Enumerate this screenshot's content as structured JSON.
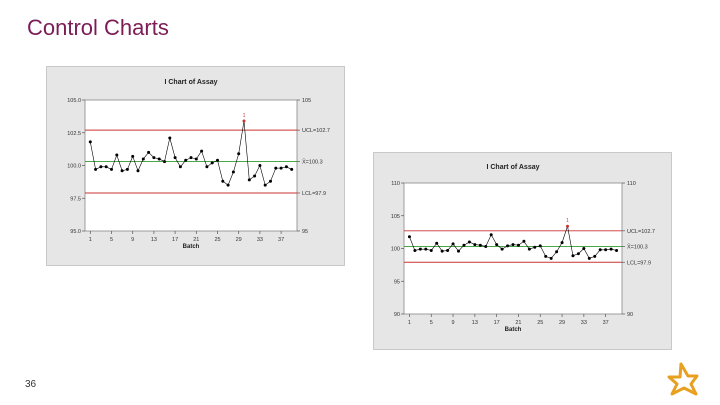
{
  "slide": {
    "title": "Control Charts",
    "page_number": "36",
    "logo_icon": "company-logo-icon",
    "accent_color": "#7b1c55",
    "logo_color": "#e8a020"
  },
  "chart_data": [
    {
      "type": "line",
      "title": "I Chart of Assay",
      "xlabel": "Batch",
      "ylabel": "",
      "x_ticks": [
        1,
        5,
        9,
        13,
        17,
        21,
        25,
        29,
        33,
        37
      ],
      "x_range": [
        0,
        40
      ],
      "y_ticks": [
        95.0,
        97.5,
        100.0,
        102.5,
        105.0
      ],
      "y_tick_labels": [
        "95.0",
        "97.5",
        "100.0",
        "102.5",
        "105.0"
      ],
      "ylim": [
        95,
        105
      ],
      "right_labels": [
        {
          "y": 105,
          "text": "105"
        },
        {
          "y": 102.7,
          "text": "UCL=102.7"
        },
        {
          "y": 100.3,
          "text": "X̄=100.3"
        },
        {
          "y": 97.9,
          "text": "LCL=97.9"
        },
        {
          "y": 95,
          "text": "95"
        }
      ],
      "ucl": 102.7,
      "center": 100.3,
      "lcl": 97.9,
      "out_of_control": [
        {
          "x": 30,
          "label": "1"
        }
      ],
      "series": [
        {
          "x": [
            1,
            2,
            3,
            4,
            5,
            6,
            7,
            8,
            9,
            10,
            11,
            12,
            13,
            14,
            15,
            16,
            17,
            18,
            19,
            20,
            21,
            22,
            23,
            24,
            25,
            26,
            27,
            28,
            29,
            30,
            31,
            32,
            33,
            34,
            35,
            36,
            37,
            38,
            39
          ],
          "values": [
            101.8,
            99.7,
            99.9,
            99.9,
            99.7,
            100.8,
            99.6,
            99.7,
            100.7,
            99.6,
            100.5,
            101.0,
            100.6,
            100.5,
            100.3,
            102.1,
            100.6,
            99.9,
            100.4,
            100.6,
            100.5,
            101.1,
            99.9,
            100.2,
            100.4,
            98.8,
            98.5,
            99.5,
            100.9,
            103.4,
            98.9,
            99.2,
            100.0,
            98.5,
            98.8,
            99.8,
            99.8,
            99.9,
            99.7
          ]
        }
      ],
      "grid": false,
      "colors": {
        "series": "#000000",
        "ucl": "#cc3333",
        "lcl": "#cc3333",
        "center": "#2e9b2e",
        "outlier": "#cc3333",
        "plot_bg": "#ffffff",
        "frame_bg": "#e6e6e6"
      }
    },
    {
      "type": "line",
      "title": "I Chart of Assay",
      "xlabel": "Batch",
      "ylabel": "",
      "x_ticks": [
        1,
        5,
        9,
        13,
        17,
        21,
        25,
        29,
        33,
        37
      ],
      "x_range": [
        0,
        40
      ],
      "y_ticks": [
        90,
        95,
        100,
        105,
        110
      ],
      "y_tick_labels": [
        "90",
        "95",
        "100",
        "105",
        "110"
      ],
      "ylim": [
        90,
        110
      ],
      "right_labels": [
        {
          "y": 110,
          "text": "110"
        },
        {
          "y": 102.7,
          "text": "UCL=102.7"
        },
        {
          "y": 100.3,
          "text": "X̄=100.3"
        },
        {
          "y": 97.9,
          "text": "LCL=97.9"
        },
        {
          "y": 90,
          "text": "90"
        }
      ],
      "ucl": 102.7,
      "center": 100.3,
      "lcl": 97.9,
      "out_of_control": [
        {
          "x": 30,
          "label": "1"
        }
      ],
      "series": [
        {
          "x": [
            1,
            2,
            3,
            4,
            5,
            6,
            7,
            8,
            9,
            10,
            11,
            12,
            13,
            14,
            15,
            16,
            17,
            18,
            19,
            20,
            21,
            22,
            23,
            24,
            25,
            26,
            27,
            28,
            29,
            30,
            31,
            32,
            33,
            34,
            35,
            36,
            37,
            38,
            39
          ],
          "values": [
            101.8,
            99.7,
            99.9,
            99.9,
            99.7,
            100.8,
            99.6,
            99.7,
            100.7,
            99.6,
            100.5,
            101.0,
            100.6,
            100.5,
            100.3,
            102.1,
            100.6,
            99.9,
            100.4,
            100.6,
            100.5,
            101.1,
            99.9,
            100.2,
            100.4,
            98.8,
            98.5,
            99.5,
            100.9,
            103.4,
            98.9,
            99.2,
            100.0,
            98.5,
            98.8,
            99.8,
            99.8,
            99.9,
            99.7
          ]
        }
      ],
      "grid": false,
      "colors": {
        "series": "#000000",
        "ucl": "#cc3333",
        "lcl": "#cc3333",
        "center": "#2e9b2e",
        "outlier": "#cc3333",
        "plot_bg": "#ffffff",
        "frame_bg": "#e6e6e6"
      }
    }
  ]
}
